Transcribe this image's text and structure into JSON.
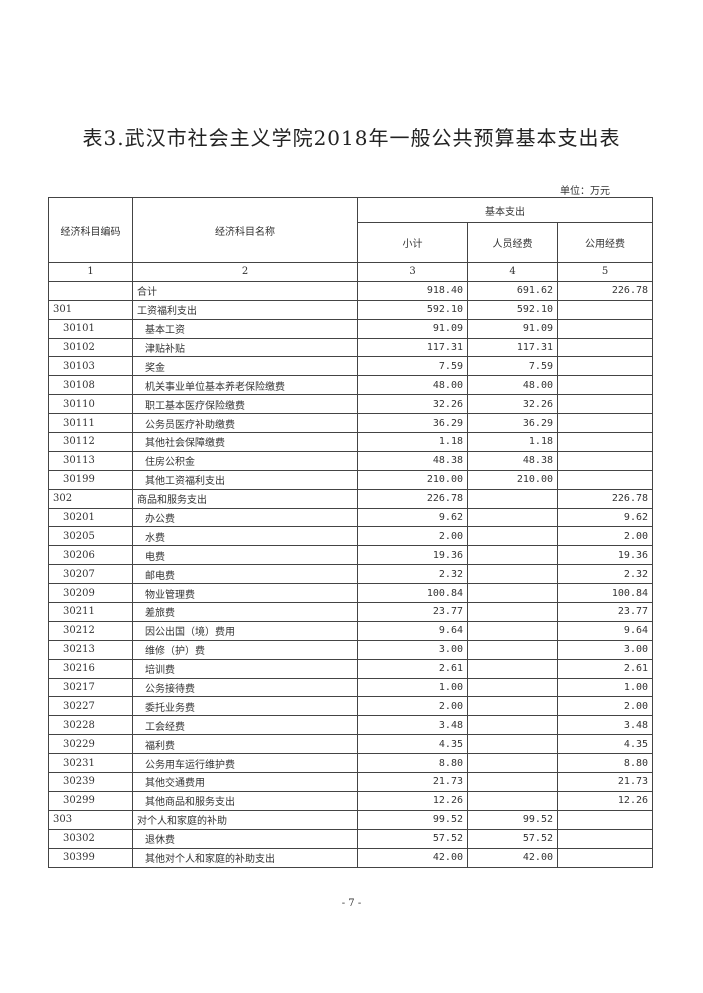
{
  "title": "表3.武汉市社会主义学院2018年一般公共预算基本支出表",
  "unit": "单位：万元",
  "headers": {
    "code": "经济科目编码",
    "name": "经济科目名称",
    "basic": "基本支出",
    "subtotal": "小计",
    "personnel": "人员经费",
    "public": "公用经费",
    "index": [
      "1",
      "2",
      "3",
      "4",
      "5"
    ]
  },
  "total": {
    "name": "合计",
    "subtotal": "918.40",
    "personnel": "691.62",
    "public": "226.78"
  },
  "rows": [
    {
      "code": "301",
      "name": "工资福利支出",
      "subtotal": "592.10",
      "personnel": "592.10",
      "public": "",
      "level": 1
    },
    {
      "code": "30101",
      "name": "基本工资",
      "subtotal": "91.09",
      "personnel": "91.09",
      "public": "",
      "level": 2
    },
    {
      "code": "30102",
      "name": "津贴补贴",
      "subtotal": "117.31",
      "personnel": "117.31",
      "public": "",
      "level": 2
    },
    {
      "code": "30103",
      "name": "奖金",
      "subtotal": "7.59",
      "personnel": "7.59",
      "public": "",
      "level": 2
    },
    {
      "code": "30108",
      "name": "机关事业单位基本养老保险缴费",
      "subtotal": "48.00",
      "personnel": "48.00",
      "public": "",
      "level": 2
    },
    {
      "code": "30110",
      "name": "职工基本医疗保险缴费",
      "subtotal": "32.26",
      "personnel": "32.26",
      "public": "",
      "level": 2
    },
    {
      "code": "30111",
      "name": "公务员医疗补助缴费",
      "subtotal": "36.29",
      "personnel": "36.29",
      "public": "",
      "level": 2
    },
    {
      "code": "30112",
      "name": "其他社会保障缴费",
      "subtotal": "1.18",
      "personnel": "1.18",
      "public": "",
      "level": 2
    },
    {
      "code": "30113",
      "name": "住房公积金",
      "subtotal": "48.38",
      "personnel": "48.38",
      "public": "",
      "level": 2
    },
    {
      "code": "30199",
      "name": "其他工资福利支出",
      "subtotal": "210.00",
      "personnel": "210.00",
      "public": "",
      "level": 2
    },
    {
      "code": "302",
      "name": "商品和服务支出",
      "subtotal": "226.78",
      "personnel": "",
      "public": "226.78",
      "level": 1
    },
    {
      "code": "30201",
      "name": "办公费",
      "subtotal": "9.62",
      "personnel": "",
      "public": "9.62",
      "level": 2
    },
    {
      "code": "30205",
      "name": "水费",
      "subtotal": "2.00",
      "personnel": "",
      "public": "2.00",
      "level": 2
    },
    {
      "code": "30206",
      "name": "电费",
      "subtotal": "19.36",
      "personnel": "",
      "public": "19.36",
      "level": 2
    },
    {
      "code": "30207",
      "name": "邮电费",
      "subtotal": "2.32",
      "personnel": "",
      "public": "2.32",
      "level": 2
    },
    {
      "code": "30209",
      "name": "物业管理费",
      "subtotal": "100.84",
      "personnel": "",
      "public": "100.84",
      "level": 2
    },
    {
      "code": "30211",
      "name": "差旅费",
      "subtotal": "23.77",
      "personnel": "",
      "public": "23.77",
      "level": 2
    },
    {
      "code": "30212",
      "name": "因公出国（境）费用",
      "subtotal": "9.64",
      "personnel": "",
      "public": "9.64",
      "level": 2
    },
    {
      "code": "30213",
      "name": "维修（护）费",
      "subtotal": "3.00",
      "personnel": "",
      "public": "3.00",
      "level": 2
    },
    {
      "code": "30216",
      "name": "培训费",
      "subtotal": "2.61",
      "personnel": "",
      "public": "2.61",
      "level": 2
    },
    {
      "code": "30217",
      "name": "公务接待费",
      "subtotal": "1.00",
      "personnel": "",
      "public": "1.00",
      "level": 2
    },
    {
      "code": "30227",
      "name": "委托业务费",
      "subtotal": "2.00",
      "personnel": "",
      "public": "2.00",
      "level": 2
    },
    {
      "code": "30228",
      "name": "工会经费",
      "subtotal": "3.48",
      "personnel": "",
      "public": "3.48",
      "level": 2
    },
    {
      "code": "30229",
      "name": "福利费",
      "subtotal": "4.35",
      "personnel": "",
      "public": "4.35",
      "level": 2
    },
    {
      "code": "30231",
      "name": "公务用车运行维护费",
      "subtotal": "8.80",
      "personnel": "",
      "public": "8.80",
      "level": 2
    },
    {
      "code": "30239",
      "name": "其他交通费用",
      "subtotal": "21.73",
      "personnel": "",
      "public": "21.73",
      "level": 2
    },
    {
      "code": "30299",
      "name": "其他商品和服务支出",
      "subtotal": "12.26",
      "personnel": "",
      "public": "12.26",
      "level": 2
    },
    {
      "code": "303",
      "name": "对个人和家庭的补助",
      "subtotal": "99.52",
      "personnel": "99.52",
      "public": "",
      "level": 1
    },
    {
      "code": "30302",
      "name": "退休费",
      "subtotal": "57.52",
      "personnel": "57.52",
      "public": "",
      "level": 2
    },
    {
      "code": "30399",
      "name": "其他对个人和家庭的补助支出",
      "subtotal": "42.00",
      "personnel": "42.00",
      "public": "",
      "level": 2
    }
  ],
  "page_number": "- 7 -"
}
